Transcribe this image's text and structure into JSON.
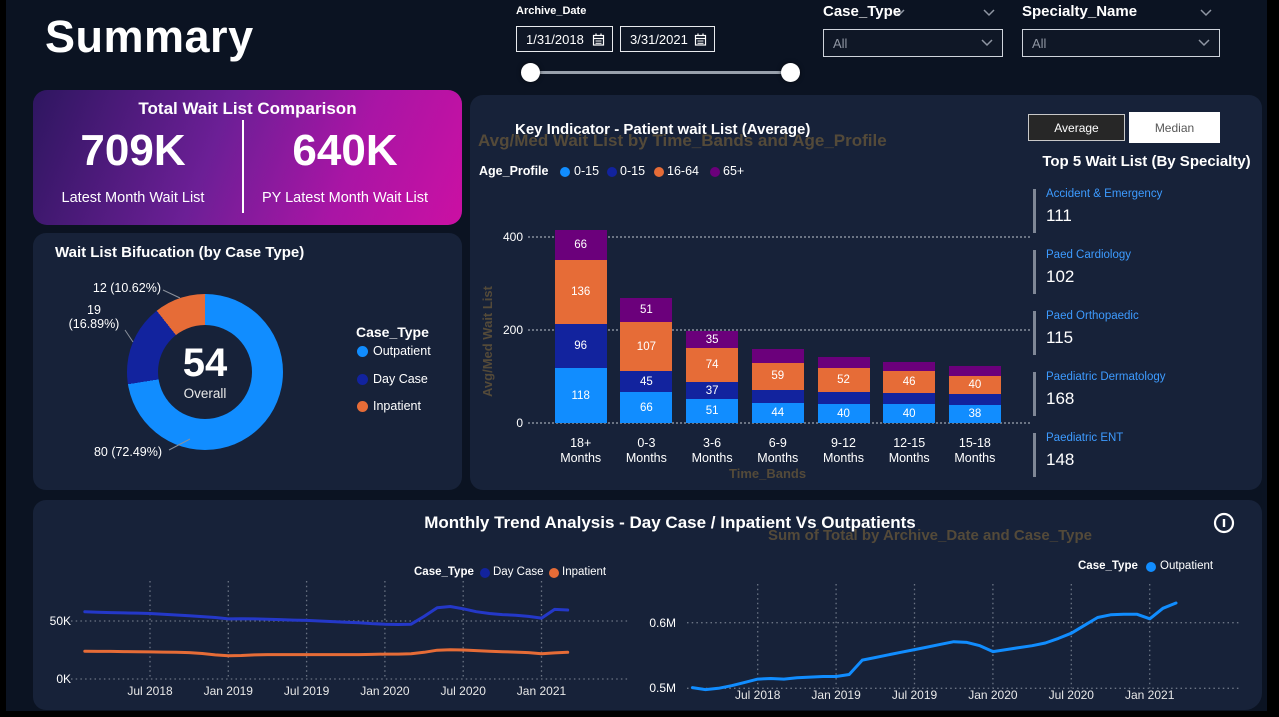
{
  "page": {
    "title": "Summary"
  },
  "filters": {
    "archive_date": {
      "label": "Archive_Date",
      "start": "1/31/2018",
      "end": "3/31/2021"
    },
    "case_type": {
      "label": "Case_Type",
      "value": "All"
    },
    "specialty_name": {
      "label": "Specialty_Name",
      "value": "All"
    }
  },
  "comparison_card": {
    "title": "Total Wait List Comparison",
    "latest": {
      "value": "709K",
      "label": "Latest Month Wait List"
    },
    "py": {
      "value": "640K",
      "label": "PY Latest Month Wait List"
    }
  },
  "bifurcation": {
    "title": "Wait List Bifucation (by Case Type)",
    "center_value": "54",
    "center_label": "Overall",
    "legend_title": "Case_Type",
    "callouts": {
      "inpatient": "12 (10.62%)",
      "daycase_line1": "19",
      "daycase_line2": "(16.89%)",
      "outpatient": "80 (72.49%)"
    }
  },
  "key_indicator": {
    "title": "Key Indicator - Patient wait List (Average)",
    "auto_title": "Avg/Med Wait List by Time_Bands and Age_Profile",
    "legend_title": "Age_Profile",
    "y_axis_title": "Avg/Med Wait List",
    "x_axis_title": "Time_Bands",
    "y_ticks": [
      "400",
      "200",
      "0"
    ]
  },
  "toggle": {
    "average": "Average",
    "median": "Median"
  },
  "top5": {
    "title": "Top 5 Wait List (By Specialty)",
    "items": [
      {
        "name": "Accident & Emergency",
        "value": "111"
      },
      {
        "name": "Paed Cardiology",
        "value": "102"
      },
      {
        "name": "Paed Orthopaedic",
        "value": "115"
      },
      {
        "name": "Paediatric Dermatology",
        "value": "168"
      },
      {
        "name": "Paediatric ENT",
        "value": "148"
      }
    ]
  },
  "trend": {
    "title": "Monthly Trend Analysis - Day Case / Inpatient Vs Outpatients",
    "auto_title": "Sum of Total by Archive_Date and Case_Type",
    "left_legend_title": "Case_Type",
    "right_legend_title": "Case_Type",
    "left_y_ticks": [
      "50K",
      "0K"
    ],
    "right_y_ticks": [
      "0.6M",
      "0.5M"
    ]
  },
  "chart_data": [
    {
      "id": "wait_list_bifurcation",
      "type": "pie",
      "title": "Wait List Bifucation (by Case Type)",
      "center_total": 54,
      "center_label": "Overall",
      "slices": [
        {
          "label": "Outpatient",
          "value": 80,
          "pct": 72.49,
          "color": "#118DFF"
        },
        {
          "label": "Day Case",
          "value": 19,
          "pct": 16.89,
          "color": "#12239E"
        },
        {
          "label": "Inpatient",
          "value": 12,
          "pct": 10.62,
          "color": "#E66C37"
        }
      ]
    },
    {
      "id": "key_indicator_bars",
      "type": "bar",
      "stacked": true,
      "title": "Key Indicator - Patient wait List (Average)",
      "xlabel": "Time_Bands",
      "ylabel": "Avg/Med Wait List",
      "ylim": [
        0,
        400
      ],
      "categories": [
        "18+ Months",
        "0-3 Months",
        "3-6 Months",
        "6-9 Months",
        "9-12 Months",
        "12-15 Months",
        "15-18 Months"
      ],
      "series": [
        {
          "name": "0-15",
          "color": "#118DFF",
          "values": [
            118,
            66,
            51,
            44,
            40,
            40,
            38
          ]
        },
        {
          "name": "0-15",
          "color": "#12239E",
          "values": [
            96,
            45,
            37,
            27,
            26,
            25,
            24
          ]
        },
        {
          "name": "16-64",
          "color": "#E66C37",
          "values": [
            136,
            107,
            74,
            59,
            52,
            46,
            40
          ]
        },
        {
          "name": "65+",
          "color": "#6B007B",
          "values": [
            66,
            51,
            35,
            29,
            24,
            20,
            20
          ]
        }
      ],
      "data_labels": [
        [
          118,
          96,
          136,
          66
        ],
        [
          66,
          45,
          107,
          51
        ],
        [
          51,
          37,
          74,
          35
        ],
        [
          44,
          null,
          59,
          null
        ],
        [
          40,
          null,
          52,
          null
        ],
        [
          40,
          null,
          46,
          null
        ],
        [
          38,
          null,
          40,
          null
        ]
      ],
      "note": "segments with null data_labels show no label on screen; their values are estimated from bar heights"
    },
    {
      "id": "trend_daycase_inpatient",
      "type": "line",
      "title": "Monthly Trend Analysis - Day Case / Inpatient",
      "x_start": "Feb 2018",
      "x_end": "Mar 2021",
      "x_interval": "month",
      "x_tick_labels": [
        "Jul 2018",
        "Jan 2019",
        "Jul 2019",
        "Jan 2020",
        "Jul 2020",
        "Jan 2021"
      ],
      "y_unit": "K",
      "ylim": [
        0,
        70
      ],
      "series": [
        {
          "name": "Day Case",
          "color": "#12239E",
          "line_color": "#2438C8",
          "values": [
            58,
            57.6,
            57.2,
            57,
            56.8,
            56.5,
            55.8,
            55.2,
            54.5,
            53.8,
            53,
            51.8,
            52,
            51.8,
            51.5,
            51.2,
            50.8,
            50.5,
            50,
            49.5,
            49,
            48.5,
            47.8,
            47.2,
            47,
            47.2,
            54,
            61.5,
            62.5,
            60.5,
            58,
            56.5,
            55.5,
            55,
            54,
            52.5,
            60,
            59.5
          ]
        },
        {
          "name": "Inpatient",
          "color": "#E66C37",
          "line_color": "#E66C37",
          "values": [
            24,
            23.8,
            23.8,
            23.6,
            23.5,
            23.4,
            23.2,
            23,
            22.8,
            22,
            20.8,
            20,
            20.3,
            20.8,
            21,
            21,
            21,
            21,
            21,
            21,
            21,
            21,
            21.2,
            21.5,
            21.5,
            21.8,
            23,
            24.8,
            25.3,
            25,
            24.5,
            24,
            23.5,
            23.2,
            22.8,
            21.8,
            22.5,
            23
          ]
        }
      ]
    },
    {
      "id": "trend_outpatient",
      "type": "line",
      "title": "Monthly Trend Analysis - Outpatients",
      "x_start": "Feb 2018",
      "x_end": "Mar 2021",
      "x_interval": "month",
      "x_tick_labels": [
        "Jul 2018",
        "Jan 2019",
        "Jul 2019",
        "Jan 2020",
        "Jul 2020",
        "Jan 2021"
      ],
      "y_unit": "M",
      "ylim": [
        0.48,
        0.66
      ],
      "series": [
        {
          "name": "Outpatient",
          "color": "#118DFF",
          "line_color": "#118DFF",
          "values": [
            0.501,
            0.498,
            0.5,
            0.504,
            0.509,
            0.514,
            0.515,
            0.514,
            0.516,
            0.517,
            0.518,
            0.518,
            0.521,
            0.543,
            0.547,
            0.551,
            0.555,
            0.559,
            0.563,
            0.567,
            0.571,
            0.57,
            0.565,
            0.556,
            0.559,
            0.562,
            0.565,
            0.569,
            0.576,
            0.584,
            0.596,
            0.608,
            0.612,
            0.613,
            0.613,
            0.606,
            0.622,
            0.63
          ]
        }
      ]
    }
  ]
}
